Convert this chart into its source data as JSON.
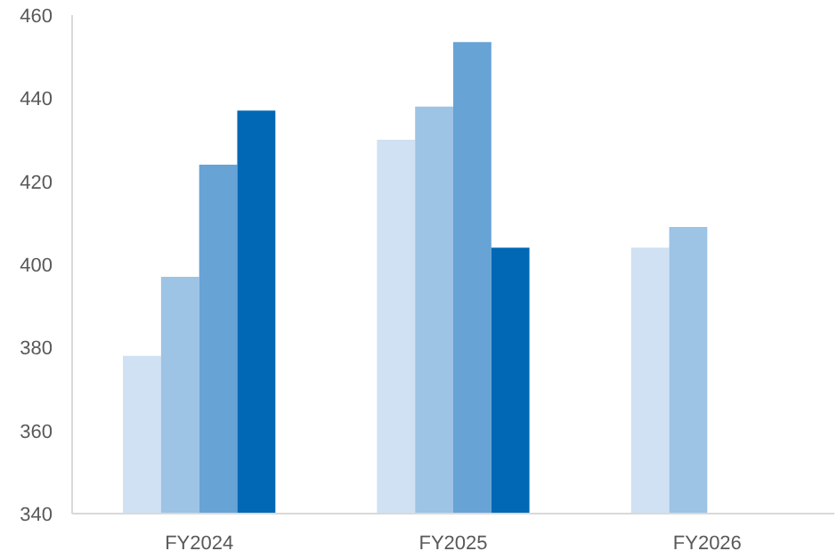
{
  "chart_data": {
    "type": "bar",
    "categories": [
      "FY2024",
      "FY2025",
      "FY2026"
    ],
    "series": [
      {
        "color": "#cfe1f2",
        "values": [
          378,
          430,
          404
        ]
      },
      {
        "color": "#9dc3e5",
        "values": [
          397,
          438,
          409
        ]
      },
      {
        "color": "#68a3d5",
        "values": [
          424,
          453.5,
          null
        ]
      },
      {
        "color": "#0068b5",
        "values": [
          437,
          404,
          null
        ]
      }
    ],
    "ylim": [
      340,
      460
    ],
    "yticks": [
      340,
      360,
      380,
      400,
      420,
      440,
      460
    ],
    "grid": false
  }
}
